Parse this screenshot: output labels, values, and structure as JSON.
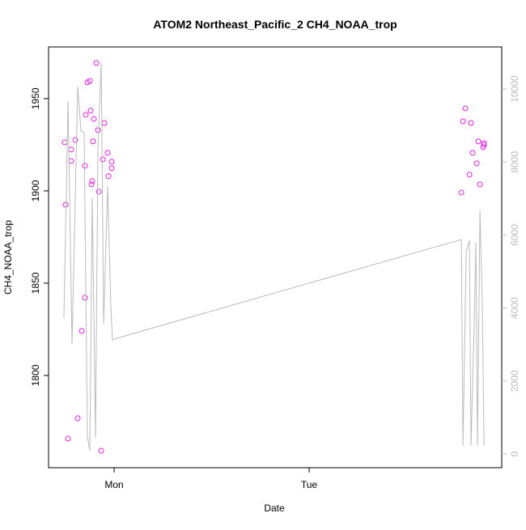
{
  "chart_data": {
    "type": "scatter_line",
    "title": "ATOM2 Northeast_Pacific_2 CH4_NOAA_trop",
    "xlabel": "Date",
    "ylabel": "CH4_NOAA_trop",
    "xlim": [
      -8.07,
      47.7
    ],
    "xticks": [
      {
        "value": 0,
        "label": "Mon"
      },
      {
        "value": 24,
        "label": "Tue"
      }
    ],
    "ylim": [
      1750,
      1978
    ],
    "yticks": [
      1800,
      1850,
      1900,
      1950
    ],
    "y2lim": [
      -377,
      11153
    ],
    "y2ticks": [
      0,
      2000,
      4000,
      6000,
      8000,
      10000
    ],
    "series": [
      {
        "color": "#e020e0",
        "mode": "points",
        "x": [
          -6.08,
          -5.98,
          -5.68,
          -5.28,
          -5.28,
          -4.78,
          -4.48,
          -3.98,
          -3.59,
          -3.59,
          -3.49,
          -3.29,
          -2.99,
          -2.89,
          -2.79,
          -2.69,
          -2.59,
          -2.49,
          -2.19,
          -1.99,
          -1.89,
          -1.59,
          -1.39,
          -1.2,
          -0.8,
          -0.7,
          -0.3,
          -0.3,
          42.73,
          42.93,
          43.23,
          43.73,
          43.92,
          44.12,
          44.62,
          44.82,
          45.02,
          45.42,
          45.52,
          45.52
        ],
        "values": [
          1926.3,
          1892.5,
          1765.8,
          1922.4,
          1916.2,
          1927.6,
          1776.8,
          1824.1,
          1842.1,
          1913.6,
          1941.2,
          1958.8,
          1959.6,
          1943.4,
          1903.5,
          1905.3,
          1926.8,
          1939.0,
          1969.3,
          1932.9,
          1899.6,
          1759.2,
          1917.1,
          1936.8,
          1920.6,
          1907.9,
          1915.8,
          1912.3,
          1899.1,
          1937.7,
          1944.7,
          1908.8,
          1936.8,
          1920.6,
          1914.9,
          1926.8,
          1903.5,
          1923.7,
          1925.9,
          1925.0
        ]
      },
      {
        "color": "#bbbbbb",
        "mode": "line",
        "axis": "y2",
        "x": [
          -6.18,
          -5.68,
          -5.18,
          -4.48,
          -4.08,
          -3.69,
          -3.29,
          -2.99,
          -2.69,
          -2.29,
          -1.99,
          -1.59,
          -1.29,
          -0.8,
          -0.4,
          -0.2,
          0,
          42.73,
          42.93,
          43.33,
          43.73,
          43.92,
          44.32,
          44.52,
          44.72,
          45.02,
          45.32,
          45.52
        ],
        "values": [
          3725,
          9667,
          3015,
          10067,
          8847,
          8803,
          466,
          89,
          7007,
          443,
          8337,
          10732,
          3570,
          7339,
          4013,
          3126,
          3149,
          5876,
          222,
          5543,
          5854,
          222,
          3636,
          5787,
          222,
          6674,
          4013,
          222
        ]
      }
    ]
  }
}
